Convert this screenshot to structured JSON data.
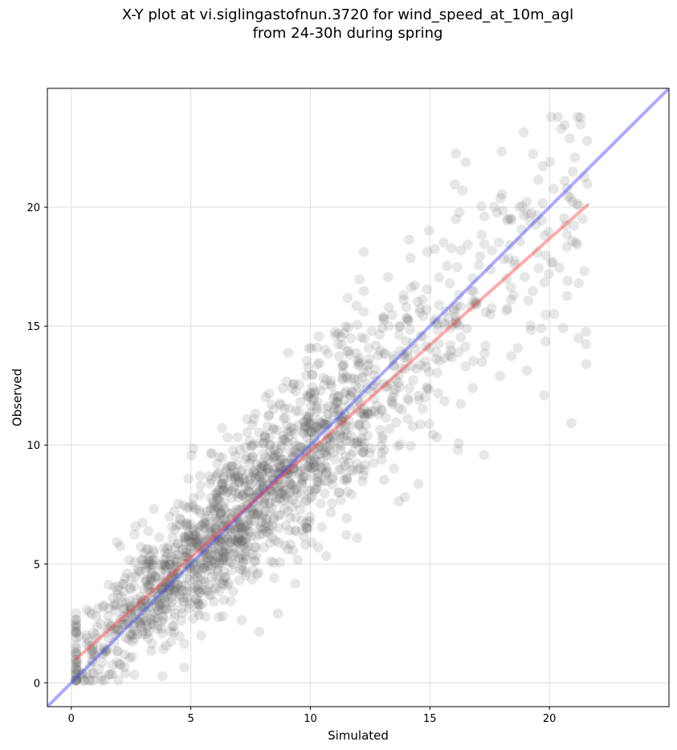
{
  "chart_data": {
    "type": "scatter",
    "title_line1": "X-Y plot at vi.siglingastofnun.3720 for wind_speed_at_10m_agl",
    "title_line2": "from 24-30h during spring",
    "xlabel": "Simulated",
    "ylabel": "Observed",
    "xlim": [
      -1,
      25
    ],
    "ylim": [
      -1,
      25
    ],
    "xticks": [
      0,
      5,
      10,
      15,
      20
    ],
    "yticks": [
      0,
      5,
      10,
      15,
      20
    ],
    "grid": true,
    "point_color": "#555555",
    "points": {
      "seed": 3720,
      "count": 1800,
      "x_range": [
        0.2,
        21.6
      ],
      "reg_slope": 0.89,
      "reg_intercept": 0.82,
      "noise_sd": 2.0
    },
    "lines": [
      {
        "name": "1:1 line",
        "color": "#4444ff",
        "x": [
          -1,
          25
        ],
        "y": [
          -1,
          25
        ]
      },
      {
        "name": "regression line",
        "color": "#ff4444",
        "x": [
          0.2,
          21.6
        ],
        "y": [
          1.0,
          20.1
        ]
      }
    ]
  }
}
